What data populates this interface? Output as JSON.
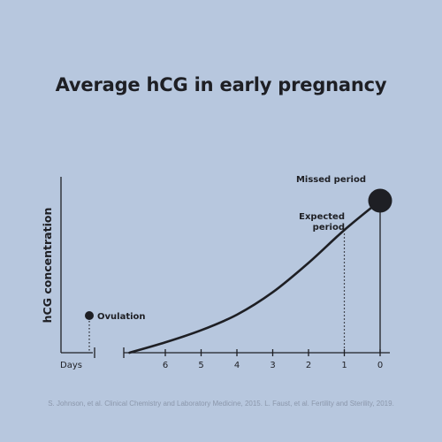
{
  "title": "Average hCG in early pregnancy",
  "source": "S. Johnson, et al. Clinical Chemistry and Laboratory Medicine, 2015. L. Faust, et al. Fertility and Sterility, 2019.",
  "colors": {
    "background": "#b7c7de",
    "ink": "#1e1f24",
    "source_text": "#8b97ab"
  },
  "chart_data": {
    "type": "line",
    "title": "Average hCG in early pregnancy",
    "ylabel": "hCG concentration",
    "xlabel": "Days",
    "x_ticks": [
      "6",
      "5",
      "4",
      "3",
      "2",
      "1",
      "0"
    ],
    "x_direction": "days before missed period, decreasing left to right",
    "y_ticks_shown": false,
    "grid": false,
    "legend": "none",
    "series": [
      {
        "x": [
          7,
          6,
          5,
          4,
          3,
          2,
          1,
          0
        ],
        "y": [
          0.0,
          0.06,
          0.13,
          0.22,
          0.35,
          0.52,
          0.71,
          0.88
        ]
      }
    ],
    "ylim": [
      0,
      1
    ],
    "annotations": [
      {
        "label": "Ovulation",
        "marker": "small-dot",
        "position": "pre-axis-break"
      },
      {
        "label_lines": [
          "Expected",
          "period"
        ],
        "x": 1,
        "y": 0.71,
        "marker": "dotted-drop-line"
      },
      {
        "label": "Missed period",
        "x": 0,
        "y": 0.88,
        "marker": "large-dot-with-drop-line"
      }
    ]
  }
}
